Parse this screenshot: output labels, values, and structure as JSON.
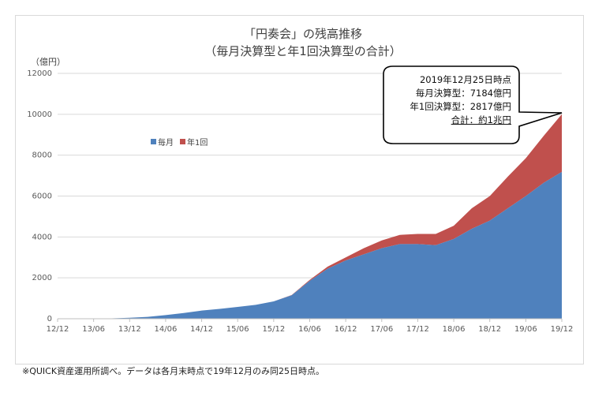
{
  "title_line1": "「円奏会」の残高推移",
  "title_line2": "（毎月決算型と年1回決算型の合計）",
  "unit_label": "（億円）",
  "callout": {
    "date": "2019年12月25日時点",
    "monthly": "毎月決算型：7184億円",
    "annual": "年1回決算型：2817億円",
    "total": "合計：約1兆円"
  },
  "footnote": "※QUICK資産運用所調べ。データは各月末時点で19年12月のみ同25日時点。",
  "colors": {
    "monthly": "#4f81bd",
    "annual": "#c0504d",
    "grid": "#d9d9d9",
    "axis": "#bfbfbf"
  },
  "chart_data": {
    "type": "area",
    "stacked": true,
    "title": "「円奏会」の残高推移（毎月決算型と年1回決算型の合計）",
    "ylabel": "（億円）",
    "ylim": [
      0,
      12000
    ],
    "yticks": [
      0,
      2000,
      4000,
      6000,
      8000,
      10000,
      12000
    ],
    "xticks": [
      "12/12",
      "13/06",
      "13/12",
      "14/06",
      "14/12",
      "15/06",
      "15/12",
      "16/06",
      "16/12",
      "17/06",
      "17/12",
      "18/06",
      "18/12",
      "19/06",
      "19/12"
    ],
    "legend": {
      "position": "upper-left",
      "entries": [
        "毎月",
        "年1回"
      ]
    },
    "grid": true,
    "x": [
      "12/12",
      "13/03",
      "13/06",
      "13/09",
      "13/12",
      "14/03",
      "14/06",
      "14/09",
      "14/12",
      "15/03",
      "15/06",
      "15/09",
      "15/12",
      "16/03",
      "16/06",
      "16/09",
      "16/12",
      "17/03",
      "17/06",
      "17/09",
      "17/12",
      "18/03",
      "18/06",
      "18/09",
      "18/12",
      "19/03",
      "19/06",
      "19/09",
      "19/12"
    ],
    "series": [
      {
        "name": "毎月",
        "values": [
          0,
          0,
          0,
          20,
          50,
          90,
          180,
          280,
          400,
          480,
          580,
          680,
          850,
          1150,
          1850,
          2450,
          2850,
          3150,
          3450,
          3650,
          3650,
          3600,
          3900,
          4400,
          4800,
          5400,
          6000,
          6650,
          7184
        ]
      },
      {
        "name": "年1回",
        "values": [
          0,
          0,
          0,
          0,
          0,
          0,
          0,
          0,
          0,
          0,
          0,
          0,
          0,
          10,
          50,
          100,
          150,
          300,
          380,
          450,
          500,
          550,
          650,
          1000,
          1200,
          1550,
          1850,
          2300,
          2817
        ]
      }
    ]
  }
}
